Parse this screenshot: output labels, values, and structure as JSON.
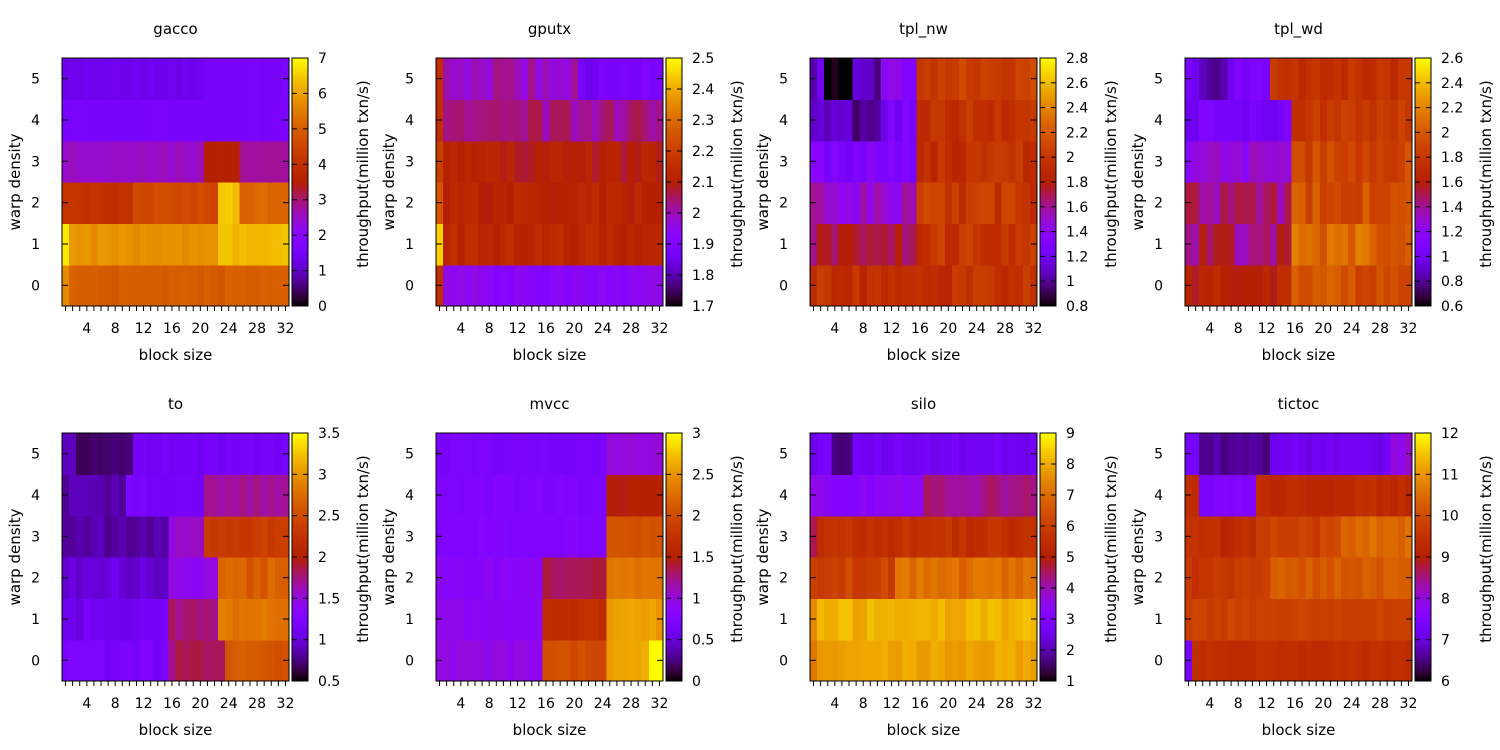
{
  "chart_data": [
    {
      "type": "heatmap",
      "title": "gacco",
      "xlabel": "block size",
      "ylabel": "warp density",
      "colorbar_label": "throughput(million txn/s)",
      "x_ticks": [
        "4",
        "8",
        "12",
        "16",
        "20",
        "24",
        "28",
        "32"
      ],
      "y_ticks": [
        "0",
        "1",
        "2",
        "3",
        "4",
        "5"
      ],
      "colorbar_ticks": [
        "0",
        "1",
        "2",
        "3",
        "4",
        "5",
        "6",
        "7"
      ],
      "vmin": 0,
      "vmax": 7,
      "n_cols": 32,
      "rows": [
        {
          "segs": [
            [
              1,
              32,
              5.0
            ]
          ],
          "noise": 0.12,
          "first": 5.7
        },
        {
          "segs": [
            [
              1,
              22,
              5.8
            ],
            [
              23,
              32,
              6.3
            ]
          ],
          "noise": 0.12,
          "first": 6.8
        },
        {
          "segs": [
            [
              1,
              10,
              4.0
            ],
            [
              11,
              22,
              4.6
            ],
            [
              23,
              25,
              6.4
            ],
            [
              26,
              32,
              5.2
            ]
          ],
          "noise": 0.15
        },
        {
          "segs": [
            [
              1,
              20,
              2.5
            ],
            [
              21,
              25,
              3.6
            ],
            [
              26,
              32,
              2.8
            ]
          ],
          "noise": 0.12
        },
        {
          "segs": [
            [
              1,
              32,
              1.6
            ]
          ],
          "noise": 0.05
        },
        {
          "segs": [
            [
              1,
              20,
              1.35
            ],
            [
              21,
              32,
              1.6
            ]
          ],
          "noise": 0.07
        }
      ]
    },
    {
      "type": "heatmap",
      "title": "gputx",
      "xlabel": "block size",
      "ylabel": "warp density",
      "colorbar_label": "throughput(million txn/s)",
      "x_ticks": [
        "4",
        "8",
        "12",
        "16",
        "20",
        "24",
        "28",
        "32"
      ],
      "y_ticks": [
        "0",
        "1",
        "2",
        "3",
        "4",
        "5"
      ],
      "colorbar_ticks": [
        "1.7",
        "1.8",
        "1.9",
        "2",
        "2.1",
        "2.2",
        "2.3",
        "2.4",
        "2.5"
      ],
      "vmin": 1.7,
      "vmax": 2.5,
      "n_cols": 32,
      "rows": [
        {
          "segs": [
            [
              1,
              32,
              1.93
            ]
          ],
          "noise": 0.03,
          "first": 2.15
        },
        {
          "segs": [
            [
              1,
              32,
              2.13
            ]
          ],
          "noise": 0.03,
          "first": 2.45
        },
        {
          "segs": [
            [
              1,
              32,
              2.12
            ]
          ],
          "noise": 0.03,
          "first": 2.25
        },
        {
          "segs": [
            [
              1,
              32,
              2.1
            ]
          ],
          "noise": 0.03,
          "first": 2.2
        },
        {
          "segs": [
            [
              1,
              32,
              2.03
            ]
          ],
          "noise": 0.04,
          "first": 2.15
        },
        {
          "segs": [
            [
              1,
              20,
              2.0
            ],
            [
              21,
              32,
              1.88
            ]
          ],
          "noise": 0.04,
          "first": 2.15
        }
      ]
    },
    {
      "type": "heatmap",
      "title": "tpl_nw",
      "xlabel": "block size",
      "ylabel": "warp density",
      "colorbar_label": "throughput(million txn/s)",
      "x_ticks": [
        "4",
        "8",
        "12",
        "16",
        "20",
        "24",
        "28",
        "32"
      ],
      "y_ticks": [
        "0",
        "1",
        "2",
        "3",
        "4",
        "5"
      ],
      "colorbar_ticks": [
        "0.8",
        "1",
        "1.2",
        "1.4",
        "1.6",
        "1.8",
        "2",
        "2.2",
        "2.4",
        "2.6",
        "2.8"
      ],
      "vmin": 0.8,
      "vmax": 2.8,
      "n_cols": 32,
      "rows": [
        {
          "segs": [
            [
              1,
              32,
              1.95
            ]
          ],
          "noise": 0.12
        },
        {
          "segs": [
            [
              1,
              15,
              1.7
            ],
            [
              16,
              32,
              2.0
            ]
          ],
          "noise": 0.12
        },
        {
          "segs": [
            [
              1,
              15,
              1.5
            ],
            [
              16,
              32,
              2.0
            ]
          ],
          "noise": 0.12
        },
        {
          "segs": [
            [
              1,
              15,
              1.3
            ],
            [
              16,
              32,
              1.95
            ]
          ],
          "noise": 0.1
        },
        {
          "segs": [
            [
              1,
              6,
              1.15
            ],
            [
              7,
              10,
              1.0
            ],
            [
              11,
              15,
              1.25
            ],
            [
              16,
              32,
              1.95
            ]
          ],
          "noise": 0.1
        },
        {
          "segs": [
            [
              1,
              2,
              1.1
            ],
            [
              3,
              6,
              0.85
            ],
            [
              7,
              10,
              1.05
            ],
            [
              11,
              15,
              1.4
            ],
            [
              16,
              32,
              2.05
            ]
          ],
          "noise": 0.1
        }
      ]
    },
    {
      "type": "heatmap",
      "title": "tpl_wd",
      "xlabel": "block size",
      "ylabel": "warp density",
      "colorbar_label": "throughput(million txn/s)",
      "x_ticks": [
        "4",
        "8",
        "12",
        "16",
        "20",
        "24",
        "28",
        "32"
      ],
      "y_ticks": [
        "0",
        "1",
        "2",
        "3",
        "4",
        "5"
      ],
      "colorbar_ticks": [
        "0.6",
        "0.8",
        "1",
        "1.2",
        "1.4",
        "1.6",
        "1.8",
        "2",
        "2.2",
        "2.4",
        "2.6"
      ],
      "vmin": 0.6,
      "vmax": 2.6,
      "n_cols": 32,
      "rows": [
        {
          "segs": [
            [
              1,
              15,
              1.65
            ],
            [
              16,
              32,
              1.95
            ]
          ],
          "noise": 0.12
        },
        {
          "segs": [
            [
              1,
              15,
              1.45
            ],
            [
              16,
              32,
              2.05
            ]
          ],
          "noise": 0.15
        },
        {
          "segs": [
            [
              1,
              15,
              1.45
            ],
            [
              16,
              32,
              1.95
            ]
          ],
          "noise": 0.12
        },
        {
          "segs": [
            [
              1,
              15,
              1.25
            ],
            [
              16,
              32,
              1.9
            ]
          ],
          "noise": 0.1
        },
        {
          "segs": [
            [
              1,
              15,
              1.05
            ],
            [
              16,
              32,
              1.8
            ]
          ],
          "noise": 0.08
        },
        {
          "segs": [
            [
              1,
              2,
              1.0
            ],
            [
              3,
              6,
              0.85
            ],
            [
              7,
              12,
              1.05
            ],
            [
              13,
              32,
              1.75
            ]
          ],
          "noise": 0.08
        }
      ]
    },
    {
      "type": "heatmap",
      "title": "to",
      "xlabel": "block size",
      "ylabel": "warp density",
      "colorbar_label": "throughput(million txn/s)",
      "x_ticks": [
        "4",
        "8",
        "12",
        "16",
        "20",
        "24",
        "28",
        "32"
      ],
      "y_ticks": [
        "0",
        "1",
        "2",
        "3",
        "4",
        "5"
      ],
      "colorbar_ticks": [
        "0.5",
        "1",
        "1.5",
        "2",
        "2.5",
        "3",
        "3.5"
      ],
      "vmin": 0.5,
      "vmax": 3.5,
      "n_cols": 32,
      "rows": [
        {
          "segs": [
            [
              1,
              15,
              1.2
            ],
            [
              16,
              23,
              1.8
            ],
            [
              24,
              32,
              2.6
            ]
          ],
          "noise": 0.08
        },
        {
          "segs": [
            [
              1,
              15,
              1.1
            ],
            [
              16,
              22,
              1.75
            ],
            [
              23,
              32,
              2.85
            ]
          ],
          "noise": 0.1
        },
        {
          "segs": [
            [
              1,
              15,
              1.0
            ],
            [
              16,
              22,
              1.45
            ],
            [
              23,
              32,
              2.65
            ]
          ],
          "noise": 0.1
        },
        {
          "segs": [
            [
              1,
              15,
              0.85
            ],
            [
              16,
              20,
              1.55
            ],
            [
              21,
              32,
              2.35
            ]
          ],
          "noise": 0.08
        },
        {
          "segs": [
            [
              1,
              9,
              0.85
            ],
            [
              10,
              20,
              1.2
            ],
            [
              21,
              32,
              1.7
            ]
          ],
          "noise": 0.06
        },
        {
          "segs": [
            [
              1,
              2,
              0.9
            ],
            [
              3,
              10,
              0.7
            ],
            [
              11,
              32,
              1.15
            ]
          ],
          "noise": 0.05
        }
      ]
    },
    {
      "type": "heatmap",
      "title": "mvcc",
      "xlabel": "block size",
      "ylabel": "warp density",
      "colorbar_label": "throughput(million txn/s)",
      "x_ticks": [
        "4",
        "8",
        "12",
        "16",
        "20",
        "24",
        "28",
        "32"
      ],
      "y_ticks": [
        "0",
        "1",
        "2",
        "3",
        "4",
        "5"
      ],
      "colorbar_ticks": [
        "0",
        "0.5",
        "1",
        "1.5",
        "2",
        "2.5",
        "3"
      ],
      "vmin": 0,
      "vmax": 3,
      "n_cols": 32,
      "rows": [
        {
          "segs": [
            [
              1,
              15,
              0.95
            ],
            [
              16,
              24,
              2.0
            ],
            [
              25,
              30,
              2.6
            ],
            [
              31,
              32,
              2.95
            ]
          ],
          "noise": 0.06
        },
        {
          "segs": [
            [
              1,
              15,
              0.9
            ],
            [
              16,
              24,
              1.7
            ],
            [
              25,
              32,
              2.55
            ]
          ],
          "noise": 0.06
        },
        {
          "segs": [
            [
              1,
              15,
              0.85
            ],
            [
              16,
              24,
              1.35
            ],
            [
              25,
              32,
              2.3
            ]
          ],
          "noise": 0.06
        },
        {
          "segs": [
            [
              1,
              24,
              0.78
            ],
            [
              25,
              32,
              2.05
            ]
          ],
          "noise": 0.05
        },
        {
          "segs": [
            [
              1,
              24,
              0.75
            ],
            [
              25,
              32,
              1.5
            ]
          ],
          "noise": 0.05
        },
        {
          "segs": [
            [
              1,
              24,
              0.7
            ],
            [
              25,
              32,
              1.0
            ]
          ],
          "noise": 0.04
        }
      ]
    },
    {
      "type": "heatmap",
      "title": "silo",
      "xlabel": "block size",
      "ylabel": "warp density",
      "colorbar_label": "throughput(million txn/s)",
      "x_ticks": [
        "4",
        "8",
        "12",
        "16",
        "20",
        "24",
        "28",
        "32"
      ],
      "y_ticks": [
        "0",
        "1",
        "2",
        "3",
        "4",
        "5"
      ],
      "colorbar_ticks": [
        "1",
        "2",
        "3",
        "4",
        "5",
        "6",
        "7",
        "8",
        "9"
      ],
      "vmin": 1,
      "vmax": 9,
      "n_cols": 32,
      "rows": [
        {
          "segs": [
            [
              1,
              32,
              7.9
            ]
          ],
          "noise": 0.2,
          "first": 7.2
        },
        {
          "segs": [
            [
              1,
              32,
              8.1
            ]
          ],
          "noise": 0.25,
          "first": 7.5
        },
        {
          "segs": [
            [
              1,
              12,
              6.1
            ],
            [
              13,
              32,
              7.0
            ]
          ],
          "noise": 0.3
        },
        {
          "segs": [
            [
              1,
              32,
              5.6
            ]
          ],
          "noise": 0.25,
          "first": 4.6
        },
        {
          "segs": [
            [
              1,
              16,
              3.3
            ],
            [
              17,
              32,
              4.3
            ]
          ],
          "noise": 0.25
        },
        {
          "segs": [
            [
              1,
              3,
              2.6
            ],
            [
              4,
              6,
              1.7
            ],
            [
              7,
              32,
              2.7
            ]
          ],
          "noise": 0.2
        }
      ]
    },
    {
      "type": "heatmap",
      "title": "tictoc",
      "xlabel": "block size",
      "ylabel": "warp density",
      "colorbar_label": "throughput(million txn/s)",
      "x_ticks": [
        "4",
        "8",
        "12",
        "16",
        "20",
        "24",
        "28",
        "32"
      ],
      "y_ticks": [
        "0",
        "1",
        "2",
        "3",
        "4",
        "5"
      ],
      "colorbar_ticks": [
        "6",
        "7",
        "8",
        "9",
        "10",
        "11",
        "12"
      ],
      "vmin": 6,
      "vmax": 12,
      "n_cols": 32,
      "rows": [
        {
          "segs": [
            [
              1,
              32,
              9.4
            ]
          ],
          "noise": 0.1,
          "first": 7.3
        },
        {
          "segs": [
            [
              1,
              32,
              9.8
            ]
          ],
          "noise": 0.12
        },
        {
          "segs": [
            [
              1,
              12,
              9.6
            ],
            [
              13,
              32,
              10.2
            ]
          ],
          "noise": 0.2
        },
        {
          "segs": [
            [
              1,
              10,
              9.3
            ],
            [
              11,
              22,
              9.8
            ],
            [
              23,
              32,
              10.5
            ]
          ],
          "noise": 0.2
        },
        {
          "segs": [
            [
              1,
              2,
              9.3
            ],
            [
              3,
              10,
              7.5
            ],
            [
              11,
              32,
              9.3
            ]
          ],
          "noise": 0.15
        },
        {
          "segs": [
            [
              1,
              2,
              7.3
            ],
            [
              3,
              12,
              6.6
            ],
            [
              13,
              29,
              7.2
            ],
            [
              30,
              32,
              8.0
            ]
          ],
          "noise": 0.15
        }
      ]
    }
  ]
}
